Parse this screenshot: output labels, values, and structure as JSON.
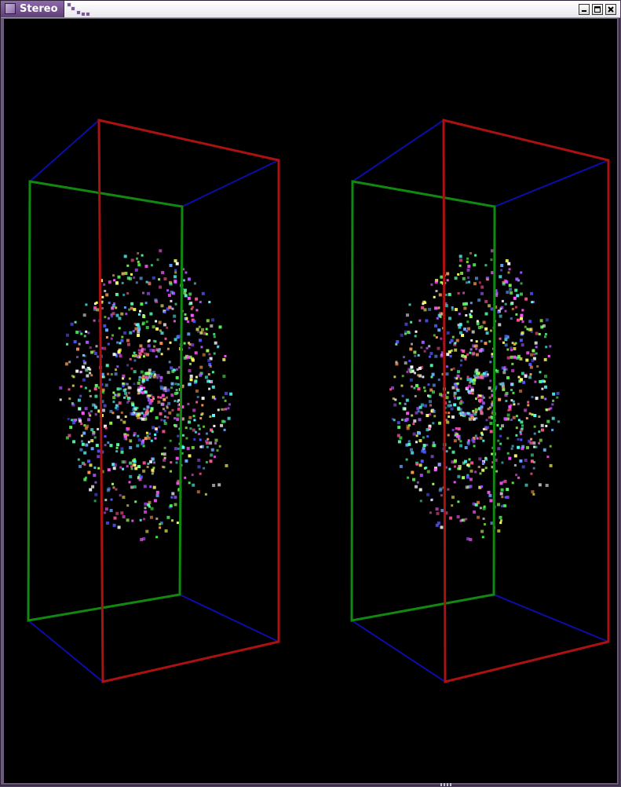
{
  "window": {
    "title": "Stereo",
    "buttons": {
      "minimize": "minimize",
      "maximize": "maximize",
      "close": "close"
    }
  },
  "scene": {
    "background": "#000000",
    "edge_colors": {
      "front": "#118811",
      "back": "#aa1111",
      "depth": "#0c0ca8"
    },
    "views": [
      "left-eye",
      "right-eye"
    ],
    "particle_palette": [
      "#ff55ff",
      "#55ff55",
      "#55ffff",
      "#ffff66",
      "#5555ff",
      "#ff5599",
      "#99ff55",
      "#ffffff",
      "#aa55ff",
      "#55ffaa",
      "#ff9955",
      "#66aaff"
    ]
  }
}
